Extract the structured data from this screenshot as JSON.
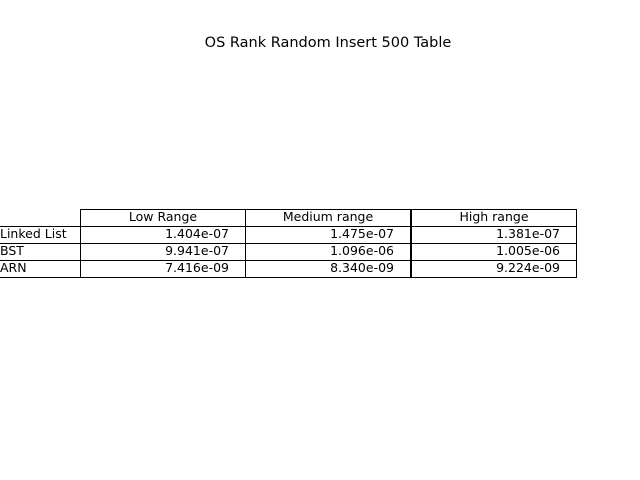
{
  "chart_data": {
    "type": "table",
    "title": "OS Rank Random Insert 500 Table",
    "columns": [
      "Low Range",
      "Medium range",
      "High range"
    ],
    "rows": [
      {
        "label": "Linked List",
        "values": [
          "1.404e-07",
          "1.475e-07",
          "1.381e-07"
        ]
      },
      {
        "label": "BST",
        "values": [
          "9.941e-07",
          "1.096e-06",
          "1.005e-06"
        ]
      },
      {
        "label": "ARN",
        "values": [
          "7.416e-09",
          "8.340e-09",
          "9.224e-09"
        ]
      }
    ]
  }
}
